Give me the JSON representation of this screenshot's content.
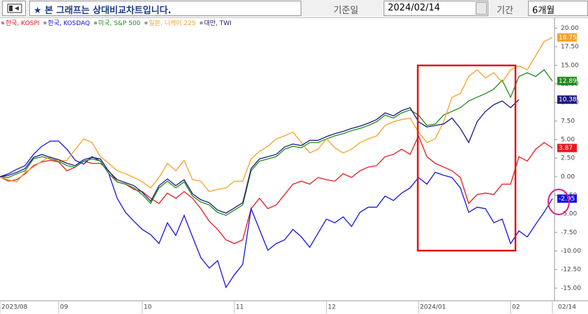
{
  "header": {
    "notice": "★ 본 그래프는 상대비교차트입니다.",
    "base_date_label": "기준일",
    "base_date": "2024/02/14",
    "period_label": "기간",
    "period": "6개월"
  },
  "chart_data": {
    "type": "line",
    "categories": [
      "2023/08",
      null,
      null,
      null,
      null,
      null,
      null,
      "09",
      null,
      null,
      null,
      null,
      null,
      null,
      null,
      null,
      null,
      "10",
      null,
      null,
      null,
      null,
      null,
      null,
      null,
      null,
      null,
      null,
      "11",
      null,
      null,
      null,
      null,
      null,
      null,
      null,
      null,
      null,
      null,
      "12",
      null,
      null,
      null,
      null,
      null,
      null,
      null,
      null,
      null,
      null,
      "2024/01",
      null,
      null,
      null,
      null,
      null,
      null,
      null,
      null,
      null,
      null,
      "02",
      null,
      null,
      null,
      null,
      "02/14"
    ],
    "series": [
      {
        "name": "한국, KOSPI",
        "color": "#e31a1c",
        "values": [
          0.0,
          -0.6,
          -0.4,
          0.4,
          1.5,
          2.0,
          2.2,
          2.0,
          0.8,
          1.3,
          2.1,
          1.8,
          1.8,
          0.8,
          -0.7,
          -1.0,
          -1.7,
          -2.0,
          -2.9,
          -3.6,
          -2.2,
          -2.9,
          -2.0,
          -2.9,
          -4.3,
          -6.0,
          -7.1,
          -8.5,
          -9.0,
          -8.5,
          -4.3,
          -2.9,
          -4.3,
          -3.8,
          -2.4,
          -1.0,
          -0.6,
          -1.0,
          -0.1,
          -0.4,
          -0.6,
          0.4,
          -0.1,
          0.8,
          1.3,
          1.5,
          2.7,
          3.0,
          3.7,
          3.0,
          5.5,
          2.7,
          1.8,
          1.3,
          0.8,
          -0.1,
          -3.6,
          -2.4,
          -2.2,
          -2.4,
          -1.0,
          -1.0,
          2.7,
          2.1,
          3.7,
          4.6,
          3.87
        ]
      },
      {
        "name": "한국, KOSDAQ",
        "color": "#1414e0",
        "values": [
          0.0,
          0.4,
          1.0,
          1.5,
          3.0,
          4.1,
          4.8,
          4.8,
          3.7,
          2.2,
          1.7,
          2.7,
          2.1,
          0.4,
          -2.9,
          -4.8,
          -6.0,
          -7.1,
          -7.8,
          -9.0,
          -6.2,
          -7.9,
          -5.2,
          -8.1,
          -10.9,
          -12.3,
          -11.3,
          -14.9,
          -13.2,
          -11.8,
          -4.3,
          -7.1,
          -9.9,
          -9.0,
          -8.5,
          -7.1,
          -8.1,
          -9.5,
          -7.6,
          -5.7,
          -6.2,
          -5.4,
          -6.7,
          -4.8,
          -4.1,
          -4.1,
          -2.6,
          -3.2,
          -2.2,
          -1.5,
          -0.1,
          -1.0,
          0.6,
          0.2,
          -0.1,
          -1.5,
          -4.8,
          -4.1,
          -4.3,
          -6.2,
          -5.7,
          -9.0,
          -7.3,
          -8.1,
          -6.4,
          -4.8,
          -2.95
        ]
      },
      {
        "name": "미국, S&P 500",
        "color": "#1e8c1e",
        "values": [
          0.0,
          -0.1,
          0.4,
          0.8,
          2.4,
          2.7,
          2.4,
          2.1,
          1.5,
          1.3,
          2.1,
          2.4,
          2.1,
          0.4,
          -0.7,
          -1.0,
          -1.5,
          -2.4,
          -3.6,
          -1.5,
          -0.6,
          -1.5,
          -0.7,
          -2.6,
          -3.4,
          -3.8,
          -4.8,
          -5.2,
          -4.5,
          -3.8,
          0.8,
          2.1,
          2.4,
          2.7,
          3.7,
          4.1,
          3.9,
          4.6,
          4.6,
          5.1,
          5.5,
          5.8,
          6.2,
          6.5,
          6.9,
          7.4,
          8.3,
          7.9,
          8.6,
          9.0,
          8.3,
          6.9,
          7.1,
          8.3,
          8.8,
          9.3,
          10.2,
          10.7,
          11.2,
          11.8,
          13.0,
          10.7,
          13.5,
          14.0,
          13.5,
          14.4,
          12.89
        ]
      },
      {
        "name": "일본, 니케이 225",
        "color": "#f5a128",
        "values": [
          0.0,
          -0.4,
          -0.7,
          0.6,
          1.3,
          2.1,
          2.7,
          2.1,
          2.2,
          3.7,
          5.1,
          4.6,
          2.7,
          1.8,
          0.8,
          0.4,
          -0.1,
          -0.7,
          -1.5,
          -0.1,
          1.8,
          0.8,
          2.2,
          -0.4,
          -0.6,
          -2.0,
          -1.7,
          -1.5,
          -0.6,
          -0.6,
          2.4,
          3.4,
          4.1,
          5.1,
          5.5,
          6.0,
          4.6,
          3.2,
          3.7,
          5.1,
          3.9,
          3.2,
          3.7,
          4.6,
          5.1,
          5.5,
          6.9,
          7.4,
          7.7,
          7.9,
          6.0,
          4.6,
          5.1,
          7.4,
          10.7,
          11.2,
          13.5,
          14.4,
          13.3,
          14.0,
          12.7,
          14.4,
          14.9,
          14.4,
          16.3,
          18.2,
          18.75
        ]
      },
      {
        "name": "대만, TWI",
        "color": "#1c1c7a",
        "values": [
          0.0,
          0.2,
          0.6,
          1.1,
          2.6,
          3.0,
          2.6,
          2.3,
          1.8,
          1.5,
          2.3,
          2.6,
          2.4,
          0.7,
          -0.4,
          -0.8,
          -1.2,
          -2.1,
          -3.3,
          -1.2,
          -0.3,
          -1.2,
          -0.4,
          -2.3,
          -3.1,
          -3.5,
          -4.5,
          -4.9,
          -4.2,
          -3.5,
          1.1,
          2.4,
          2.7,
          3.0,
          4.0,
          4.4,
          4.2,
          4.9,
          4.9,
          5.4,
          5.8,
          6.1,
          6.5,
          6.8,
          7.2,
          7.7,
          8.6,
          8.2,
          8.9,
          9.3,
          7.4,
          6.7,
          6.9,
          7.1,
          7.9,
          6.5,
          4.6,
          7.4,
          8.8,
          9.7,
          10.2,
          9.3,
          10.38,
          null,
          null,
          null,
          null
        ]
      }
    ],
    "ylim": [
      -16.7,
      20.7
    ],
    "yticks": [
      {
        "value": 20,
        "label": "20.00"
      },
      {
        "value": 17.5,
        "label": "17.50"
      },
      {
        "value": 15,
        "label": "15.00"
      },
      {
        "value": 12.5,
        "label": "12.50"
      },
      {
        "value": 10,
        "label": "10.00"
      },
      {
        "value": 7.5,
        "label": "7.50"
      },
      {
        "value": 5,
        "label": "5.00"
      },
      {
        "value": 2.5,
        "label": "2.50"
      },
      {
        "value": 0,
        "label": "0.00"
      },
      {
        "value": -2.5,
        "label": "-2.50"
      },
      {
        "value": -5,
        "label": "-5.00"
      },
      {
        "value": -7.5,
        "label": "-7.50"
      },
      {
        "value": -10,
        "label": "-10.00"
      },
      {
        "value": -12.5,
        "label": "-12.50"
      },
      {
        "value": -15,
        "label": "-15.00"
      }
    ],
    "legend": "top-left"
  }
}
